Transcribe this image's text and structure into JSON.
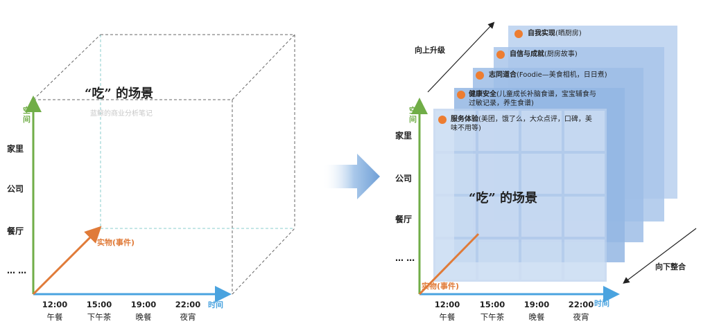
{
  "left_diagram": {
    "title": "“吃” 的场景",
    "watermark": "蓝鲸的商业分析笔记",
    "space_axis_label": "空间",
    "time_axis_label": "时间",
    "thing_axis_label": "实物(事件)",
    "places": [
      "家里",
      "公司",
      "餐厅",
      "… …"
    ],
    "times": [
      {
        "time": "12:00",
        "meal": "午餐"
      },
      {
        "time": "15:00",
        "meal": "下午茶"
      },
      {
        "time": "19:00",
        "meal": "晚餐"
      },
      {
        "time": "22:00",
        "meal": "夜宵"
      }
    ]
  },
  "right_diagram": {
    "title": "“吃” 的场景",
    "space_axis_label": "空间",
    "time_axis_label": "时间",
    "thing_axis_label": "实物(事件)",
    "upgrade_label": "向上升级",
    "integrate_label": "向下整合",
    "places": [
      "家里",
      "公司",
      "餐厅",
      "… …"
    ],
    "times": [
      {
        "time": "12:00",
        "meal": "午餐"
      },
      {
        "time": "15:00",
        "meal": "下午茶"
      },
      {
        "time": "19:00",
        "meal": "晚餐"
      },
      {
        "time": "22:00",
        "meal": "夜宵"
      }
    ],
    "layers": [
      {
        "title": "自我实现",
        "detail": "(晒厨房)"
      },
      {
        "title": "自信与成就",
        "detail": "(厨房故事)"
      },
      {
        "title": "志同道合",
        "detail": "(Foodie—美食相机，日日煮)"
      },
      {
        "title": "健康安全",
        "detail": "(儿童成长补脑食谱，宝宝辅食与过敏记录，养生食谱)"
      },
      {
        "title": "服务体验",
        "detail": "(美团，饿了么，大众点评，口碑，美味不用等)"
      }
    ]
  },
  "colors": {
    "space_axis": "#70ad47",
    "time_axis": "#4aa3df",
    "thing_axis": "#e07b39",
    "layer_fill": "#8fb4e3",
    "dot": "#ed7d31"
  }
}
